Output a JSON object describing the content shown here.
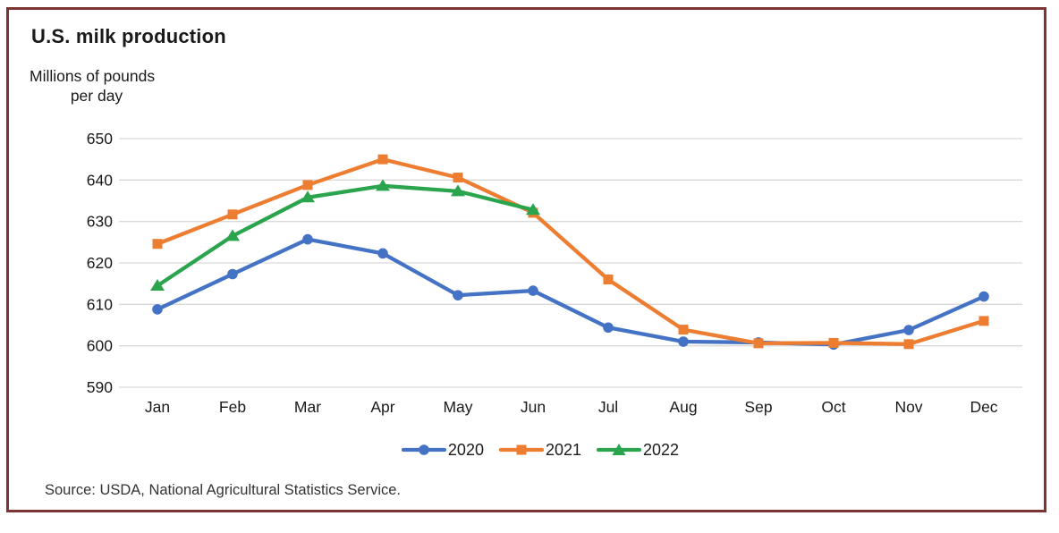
{
  "title": "U.S. milk production",
  "y_axis_title": {
    "line1": "Millions of pounds",
    "line2": "per day"
  },
  "source": "Source: USDA, National Agricultural Statistics Service.",
  "colors": {
    "frame_border": "#7d3533",
    "gridline": "#d9d9d9",
    "text": "#1a1a1a",
    "series_2020": "#4472c4",
    "series_2021": "#ed7d31",
    "series_2022": "#2aa44d"
  },
  "chart_data": {
    "type": "line",
    "title": "U.S. milk production",
    "ylabel": "Millions of pounds per day",
    "xlabel": "",
    "categories": [
      "Jan",
      "Feb",
      "Mar",
      "Apr",
      "May",
      "Jun",
      "Jul",
      "Aug",
      "Sep",
      "Oct",
      "Nov",
      "Dec"
    ],
    "series": [
      {
        "name": "2020",
        "color": "#4472c4",
        "marker": "circle",
        "values": [
          608.8,
          617.3,
          625.7,
          622.3,
          612.2,
          613.3,
          604.4,
          601.0,
          600.8,
          600.3,
          603.8,
          611.9
        ]
      },
      {
        "name": "2021",
        "color": "#ed7d31",
        "marker": "square",
        "values": [
          624.6,
          631.7,
          638.8,
          645.0,
          640.6,
          632.1,
          616.0,
          603.9,
          600.6,
          600.7,
          600.4,
          606.0
        ]
      },
      {
        "name": "2022",
        "color": "#2aa44d",
        "marker": "triangle",
        "values": [
          614.5,
          626.5,
          635.8,
          638.6,
          637.3,
          632.8,
          null,
          null,
          null,
          null,
          null,
          null
        ]
      }
    ],
    "ylim": [
      590,
      650
    ],
    "yticks": [
      590,
      600,
      610,
      620,
      630,
      640,
      650
    ],
    "grid": true,
    "legend_position": "bottom",
    "legend_entries": [
      "2020",
      "2021",
      "2022"
    ],
    "source": "Source: USDA, National Agricultural Statistics Service."
  }
}
